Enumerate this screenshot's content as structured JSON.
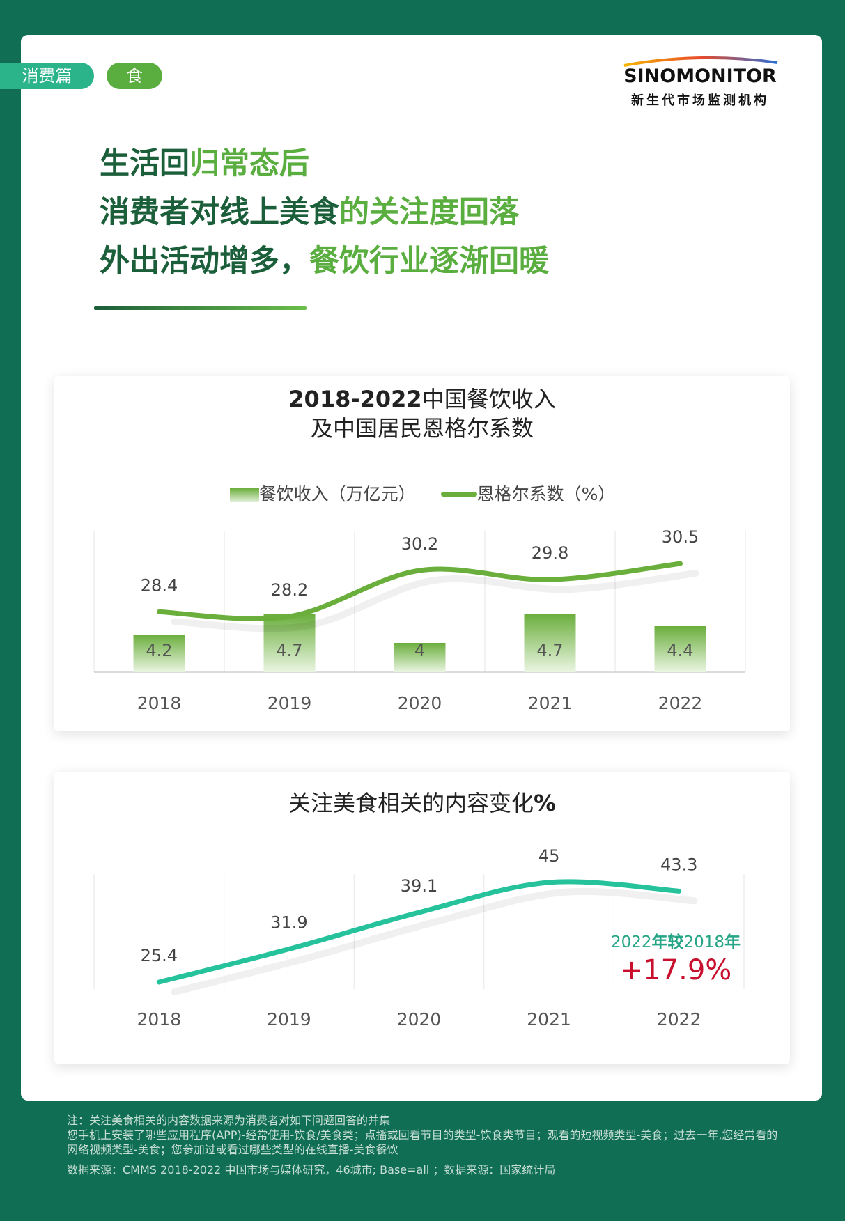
{
  "tags": [
    "消费篇",
    "食"
  ],
  "logo": {
    "name": "SINOMONITOR",
    "sub": "新生代市场监测机构"
  },
  "headline": {
    "line1_a": "生活回",
    "line1_b": "归常态后",
    "line2_a": "消费者对线上美食",
    "line2_b": "的关注度回落",
    "line3_a": "外出活动增多，",
    "line3_b": "餐饮行业逐渐回暖"
  },
  "chart1_title": {
    "bold": "2018-2022",
    "rest": "中国餐饮收入",
    "line2": "及中国居民恩格尔系数"
  },
  "chart1_legend": {
    "bar": "餐饮收入（万亿元）",
    "line": "恩格尔系数（%）"
  },
  "chart2_title": {
    "rest": "关注美食相关的内容变化",
    "bold": "%"
  },
  "chart2_annotation": {
    "a": "2022",
    "b": "年较",
    "c": "2018",
    "d": "年",
    "value": "+17.9%"
  },
  "colors": {
    "bg": "#0f6e54",
    "line1": "#6aae3c",
    "line2": "#25c29b",
    "bar": "#6aae3c",
    "red": "#c8102e"
  },
  "chart_data": [
    {
      "type": "bar",
      "categories": [
        "2018",
        "2019",
        "2020",
        "2021",
        "2022"
      ],
      "series": [
        {
          "name": "餐饮收入（万亿元）",
          "type": "bar",
          "values": [
            4.2,
            4.7,
            4.0,
            4.7,
            4.4
          ]
        },
        {
          "name": "恩格尔系数（%）",
          "type": "line",
          "values": [
            28.4,
            28.2,
            30.2,
            29.8,
            30.5
          ]
        }
      ]
    },
    {
      "type": "line",
      "categories": [
        "2018",
        "2019",
        "2020",
        "2021",
        "2022"
      ],
      "series": [
        {
          "values": [
            25.4,
            31.9,
            39.1,
            45,
            43.3
          ]
        }
      ]
    }
  ],
  "footnote": {
    "line1": "注：关注美食相关的内容数据来源为消费者对如下问题回答的并集",
    "line2": "您手机上安装了哪些应用程序(APP)-经常使用-饮食/美食类；点播或回看节目的类型-饮食类节目；观看的短视频类型-美食；过去一年,您经常看的网络视频类型-美食；您参加过或看过哪些类型的在线直播-美食餐饮",
    "source": "数据来源：CMMS 2018-2022 中国市场与媒体研究，46城市; Base=all ；数据来源：国家统计局"
  }
}
